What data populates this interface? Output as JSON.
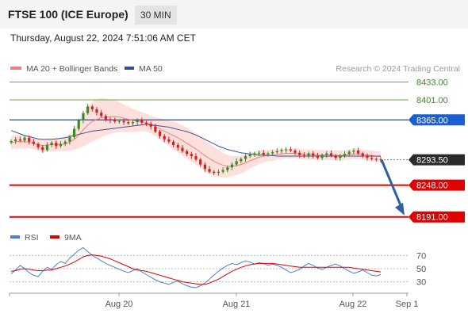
{
  "header": {
    "title": "FTSE 100 (ICE Europe)",
    "interval": "30 MIN"
  },
  "datetime": "Thursday, August 22, 2024 7:51:06 AM CET",
  "legend": {
    "items": [
      {
        "label": "MA 20 + Bollinger Bands",
        "color": "#f08080"
      },
      {
        "label": "MA 50",
        "color": "#2f4f8f"
      }
    ],
    "copyright": "Research © 2024 Trading Central"
  },
  "rsi_legend": {
    "items": [
      {
        "label": "RSI",
        "color": "#4a7fd4"
      },
      {
        "label": "9MA",
        "color": "#e00000"
      }
    ]
  },
  "colors": {
    "bull": "#3a8a2a",
    "bear": "#d42020",
    "resistance_green": "#6aaa3a",
    "pivot_blue": "#1a5fd0",
    "support_red": "#e00000",
    "last_price_bg": "#2b2b2b",
    "arrow": "#2f5fa0",
    "bollinger_fill": "#fde0dc",
    "ma20": "#f08080",
    "ma50": "#3a5590",
    "rsi": "#4a7fd4",
    "rsi_ma": "#e00000"
  },
  "chart_data": [
    {
      "type": "candlestick",
      "title": "FTSE 100 (ICE Europe)",
      "interval": "30 MIN",
      "ylim": [
        8175,
        8445
      ],
      "x_tick_labels": [
        "Aug 20",
        "Aug 21",
        "Aug 22",
        "Sep 1"
      ],
      "levels": [
        {
          "value": 8433.0,
          "label": "8433.00",
          "kind": "resistance"
        },
        {
          "value": 8401.0,
          "label": "8401.00",
          "kind": "resistance"
        },
        {
          "value": 8365.0,
          "label": "8365.00",
          "kind": "pivot"
        },
        {
          "value": 8293.5,
          "label": "8293.50",
          "kind": "last"
        },
        {
          "value": 8248.0,
          "label": "8248.00",
          "kind": "support"
        },
        {
          "value": 8191.0,
          "label": "8191.00",
          "kind": "support"
        }
      ],
      "last_price": 8293.5,
      "forecast_arrow": {
        "from": 8293.5,
        "to": 8191.0
      },
      "close": [
        8327,
        8330,
        8328,
        8333,
        8326,
        8322,
        8316,
        8311,
        8320,
        8324,
        8318,
        8322,
        8326,
        8334,
        8349,
        8364,
        8377,
        8389,
        8384,
        8378,
        8372,
        8366,
        8364,
        8362,
        8363,
        8361,
        8359,
        8361,
        8364,
        8360,
        8358,
        8353,
        8344,
        8336,
        8330,
        8326,
        8320,
        8315,
        8309,
        8304,
        8300,
        8294,
        8285,
        8277,
        8272,
        8270,
        8272,
        8275,
        8280,
        8285,
        8291,
        8295,
        8300,
        8303,
        8305,
        8306,
        8303,
        8305,
        8307,
        8309,
        8311,
        8312,
        8310,
        8306,
        8302,
        8300,
        8305,
        8301,
        8297,
        8302,
        8305,
        8301,
        8297,
        8300,
        8304,
        8308,
        8310,
        8305,
        8301,
        8297,
        8295,
        8294,
        8293.5
      ],
      "ma20_center": [
        8324,
        8326,
        8326,
        8326,
        8325,
        8323,
        8321,
        8319,
        8320,
        8321,
        8321,
        8321,
        8322,
        8325,
        8330,
        8338,
        8347,
        8356,
        8362,
        8366,
        8369,
        8370,
        8371,
        8371,
        8370,
        8368,
        8366,
        8364,
        8363,
        8362,
        8360,
        8357,
        8353,
        8349,
        8345,
        8341,
        8337,
        8333,
        8328,
        8323,
        8318,
        8313,
        8307,
        8301,
        8296,
        8291,
        8287,
        8284,
        8282,
        8282,
        8283,
        8285,
        8288,
        8292,
        8295,
        8298,
        8300,
        8301,
        8302,
        8303,
        8304,
        8305,
        8305,
        8305,
        8304,
        8303,
        8303,
        8303,
        8302,
        8302,
        8302,
        8302,
        8301,
        8301,
        8302,
        8303,
        8304,
        8304,
        8303,
        8302,
        8301,
        8300,
        8299
      ],
      "bollinger_width": [
        12,
        12,
        12,
        11,
        11,
        11,
        11,
        11,
        12,
        12,
        12,
        12,
        13,
        15,
        19,
        24,
        29,
        34,
        36,
        36,
        35,
        33,
        31,
        29,
        27,
        25,
        23,
        21,
        19,
        17,
        16,
        16,
        17,
        19,
        21,
        23,
        25,
        26,
        27,
        28,
        28,
        28,
        28,
        28,
        27,
        26,
        24,
        22,
        20,
        18,
        17,
        16,
        15,
        14,
        13,
        12,
        11,
        10,
        10,
        9,
        9,
        9,
        9,
        9,
        9,
        9,
        9,
        9,
        9,
        9,
        9,
        9,
        9,
        9,
        9,
        9,
        9,
        9,
        9,
        9,
        9,
        9,
        9
      ],
      "ma50": [
        8346,
        8343,
        8340,
        8337,
        8335,
        8333,
        8331,
        8330,
        8330,
        8330,
        8331,
        8332,
        8333,
        8335,
        8337,
        8339,
        8341,
        8343,
        8345,
        8346,
        8347,
        8348,
        8349,
        8350,
        8351,
        8352,
        8353,
        8354,
        8355,
        8356,
        8357,
        8356,
        8355,
        8354,
        8353,
        8352,
        8350,
        8348,
        8346,
        8344,
        8341,
        8338,
        8334,
        8330,
        8326,
        8322,
        8318,
        8315,
        8312,
        8310,
        8308,
        8306,
        8305,
        8304,
        8303,
        8302,
        8302,
        8301,
        8301,
        8300,
        8300,
        8300,
        8300,
        8300,
        8300,
        8300,
        8300,
        8300,
        8300,
        8300,
        8300,
        8300,
        8300,
        8300,
        8300,
        8300,
        8300,
        8300,
        8300,
        8300,
        8300,
        8300,
        8300
      ]
    },
    {
      "type": "line",
      "title": "RSI",
      "ylim": [
        15,
        85
      ],
      "y_ticks": [
        30,
        50,
        70
      ],
      "series": [
        {
          "name": "RSI",
          "values": [
            42,
            48,
            55,
            50,
            44,
            40,
            38,
            46,
            52,
            49,
            56,
            61,
            58,
            66,
            72,
            78,
            82,
            76,
            70,
            66,
            62,
            58,
            55,
            52,
            49,
            46,
            44,
            47,
            50,
            45,
            41,
            37,
            33,
            30,
            28,
            26,
            29,
            31,
            27,
            24,
            22,
            21,
            24,
            28,
            34,
            40,
            46,
            51,
            55,
            58,
            56,
            59,
            62,
            60,
            57,
            59,
            58,
            55,
            57,
            55,
            52,
            48,
            44,
            46,
            49,
            54,
            58,
            55,
            51,
            49,
            52,
            55,
            57,
            54,
            50,
            46,
            43,
            45,
            48,
            44,
            40,
            39,
            41
          ]
        },
        {
          "name": "9MA",
          "values": [
            46,
            47,
            49,
            50,
            49,
            48,
            47,
            47,
            48,
            48,
            50,
            52,
            54,
            57,
            60,
            64,
            68,
            70,
            71,
            70,
            69,
            67,
            65,
            62,
            59,
            56,
            53,
            50,
            48,
            47,
            46,
            44,
            42,
            40,
            38,
            36,
            34,
            32,
            30,
            29,
            28,
            27,
            26,
            26,
            28,
            31,
            34,
            38,
            42,
            46,
            49,
            52,
            54,
            56,
            57,
            58,
            58,
            58,
            58,
            57,
            56,
            55,
            54,
            53,
            52,
            52,
            52,
            52,
            52,
            52,
            52,
            52,
            52,
            52,
            52,
            52,
            51,
            50,
            49,
            48,
            47,
            46,
            45
          ]
        }
      ]
    }
  ]
}
